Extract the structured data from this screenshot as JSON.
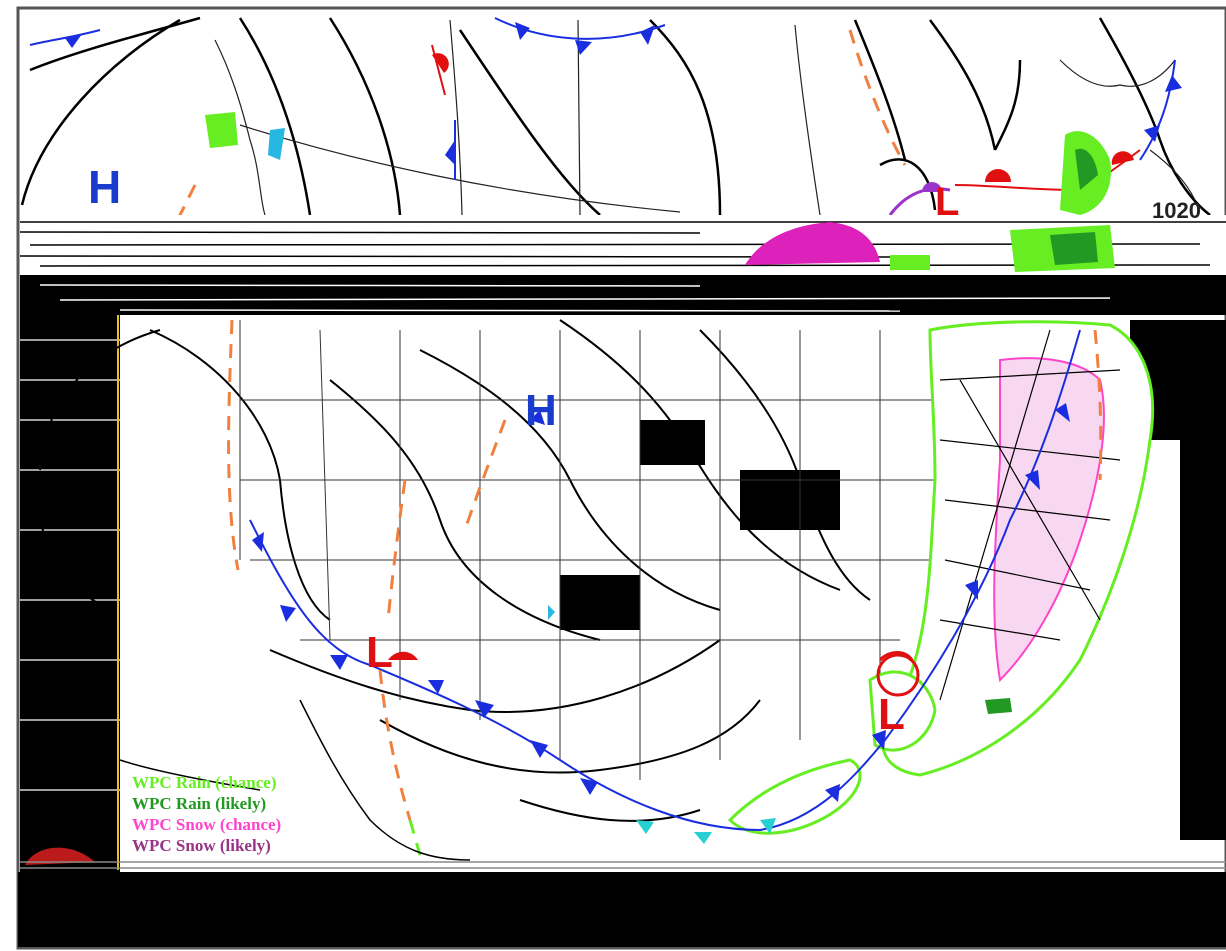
{
  "map": {
    "centers": [
      {
        "type": "H",
        "color": "#1a3ccc"
      },
      {
        "type": "H",
        "color": "#1a3ccc"
      },
      {
        "type": "L",
        "color": "#e01010"
      },
      {
        "type": "L",
        "color": "#e01010"
      },
      {
        "type": "L",
        "color": "#e01010"
      }
    ],
    "isobar_labels": [
      "1020"
    ]
  },
  "legend": {
    "items": [
      {
        "label": "WPC Rain (chance)",
        "color": "#66ee22"
      },
      {
        "label": "WPC Rain (likely)",
        "color": "#229922"
      },
      {
        "label": "WPC Snow (chance)",
        "color": "#ff44cc"
      },
      {
        "label": "WPC Snow (likely)",
        "color": "#993388"
      }
    ]
  },
  "colors": {
    "cold_front": "#1a2ee0",
    "warm_front": "#e01010",
    "trough": "#f08040",
    "stationary_cold": "#26d0d0",
    "isobar": "#000000",
    "rain_chance": "#66ee22",
    "rain_likely": "#229922",
    "snow_chance": "#ff44cc",
    "snow_likely": "#993388",
    "occluded": "#9933cc"
  }
}
